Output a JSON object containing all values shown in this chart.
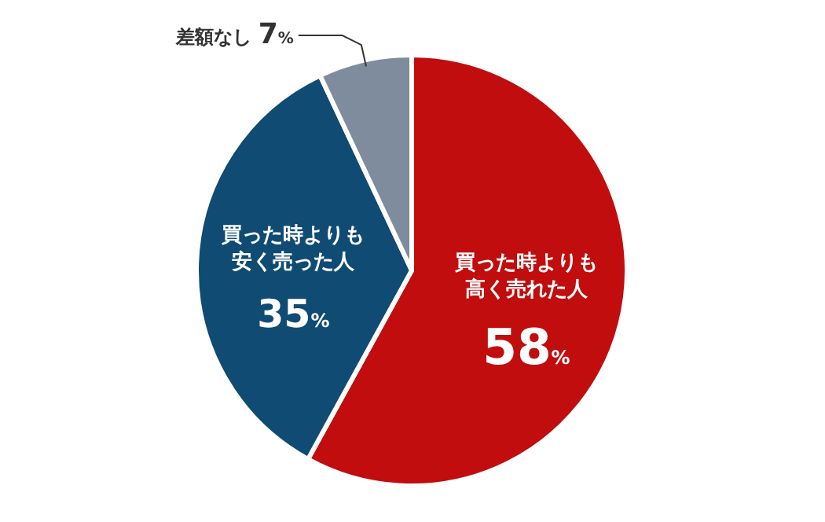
{
  "chart_data": {
    "type": "pie",
    "categories": [
      "買った時よりも高く売れた人",
      "買った時よりも安く売った人",
      "差額なし"
    ],
    "values": [
      58,
      35,
      7
    ],
    "colors": [
      "#c10d0d",
      "#0f4b73",
      "#7e8c9e"
    ],
    "value_labels": [
      "58%",
      "35%",
      "7%"
    ]
  }
}
